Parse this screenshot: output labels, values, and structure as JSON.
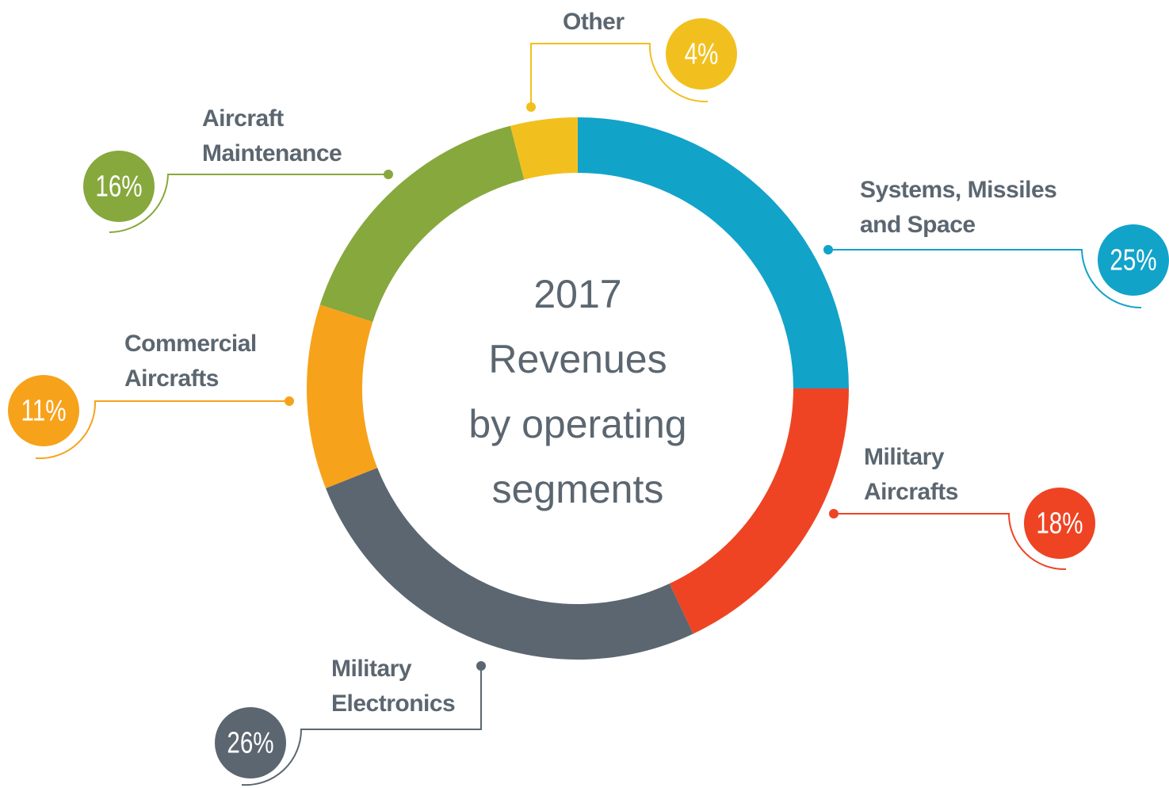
{
  "chart_data": {
    "type": "donut",
    "title": "2017 Revenues by operating segments",
    "categories": [
      "Systems, Missiles and Space",
      "Military Aircrafts",
      "Military Electronics",
      "Commercial Aircrafts",
      "Aircraft Maintenance",
      "Other"
    ],
    "values": [
      25,
      18,
      26,
      11,
      16,
      4
    ],
    "value_labels": [
      "25%",
      "18%",
      "26%",
      "11%",
      "16%",
      "4%"
    ],
    "colors": [
      "#12a3c9",
      "#ee4423",
      "#5b6670",
      "#f7a21b",
      "#86a83d",
      "#f2c01e"
    ]
  }
}
